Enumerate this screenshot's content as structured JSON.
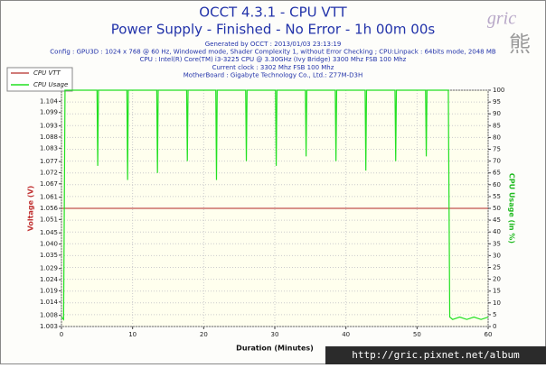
{
  "chart_data": {
    "type": "line",
    "title": "OCCT 4.3.1 - CPU VTT",
    "subtitle": "Power Supply - Finished - No Error - 1h 00m 00s",
    "info_lines": [
      "Generated by OCCT : 2013/01/03 23:13:19",
      "Config : GPU3D : 1024 x 768 @ 60 Hz, Windowed mode, Shader Complexity 1, without Error Checking ; CPU:Linpack : 64bits mode, 2048 MB",
      "CPU : Intel(R) Core(TM) i3-3225 CPU @ 3.30GHz (Ivy Bridge) 3300 Mhz FSB 100 Mhz",
      "Current clock : 3302 Mhz FSB 100 Mhz",
      "MotherBoard : Gigabyte Technology Co., Ltd.: Z77M-D3H"
    ],
    "watermark": "gric",
    "watermark_char": "熊",
    "url": "http://gric.pixnet.net/album",
    "xlabel": "Duration (Minutes)",
    "ylabel": "Voltage (V)",
    "y2label": "CPU Usage (in %)",
    "grid": true,
    "legend": "top-left",
    "x": [
      0,
      0.3,
      0.5,
      5.0,
      5.1,
      5.2,
      9.2,
      9.3,
      9.4,
      13.4,
      13.5,
      13.6,
      17.6,
      17.7,
      17.8,
      21.7,
      21.8,
      21.9,
      25.9,
      26.0,
      26.1,
      30.1,
      30.2,
      30.3,
      34.3,
      34.4,
      34.5,
      38.5,
      38.6,
      38.7,
      42.7,
      42.8,
      42.9,
      46.9,
      47.0,
      47.1,
      51.2,
      51.3,
      51.4,
      54.4,
      54.6,
      55,
      56,
      57,
      58,
      59,
      60
    ],
    "xlim": [
      0,
      60
    ],
    "xticks": [
      0,
      10,
      20,
      30,
      40,
      50,
      60
    ],
    "ylim": [
      1.003,
      1.109
    ],
    "yticks": [
      1.104,
      1.099,
      1.093,
      1.088,
      1.083,
      1.077,
      1.072,
      1.067,
      1.061,
      1.056,
      1.051,
      1.045,
      {
        "value": 1.04,
        "label": "1.040"
      },
      1.035,
      1.029,
      1.024,
      1.019,
      1.014,
      1.008,
      1.003
    ],
    "y2lim": [
      0,
      100
    ],
    "y2ticks": [
      0,
      5,
      10,
      15,
      20,
      25,
      30,
      35,
      40,
      45,
      50,
      55,
      60,
      65,
      70,
      75,
      80,
      85,
      90,
      95,
      100
    ],
    "series": [
      {
        "name": "CPU VTT",
        "color": "#c0504d",
        "values": [
          1.056,
          1.056,
          1.056,
          1.056,
          1.056,
          1.056,
          1.056,
          1.056,
          1.056,
          1.056,
          1.056,
          1.056,
          1.056,
          1.056,
          1.056,
          1.056,
          1.056,
          1.056,
          1.056,
          1.056,
          1.056,
          1.056,
          1.056,
          1.056,
          1.056,
          1.056,
          1.056,
          1.056,
          1.056,
          1.056,
          1.056,
          1.056,
          1.056,
          1.056,
          1.056,
          1.056,
          1.056,
          1.056,
          1.056,
          1.056,
          1.056,
          1.056,
          1.056,
          1.056,
          1.056,
          1.056,
          1.056
        ]
      },
      {
        "name": "CPU Usage",
        "color": "#22e022",
        "axis": "y2",
        "values": [
          4,
          3,
          100,
          100,
          68,
          100,
          100,
          62,
          100,
          100,
          65,
          100,
          100,
          70,
          100,
          100,
          62,
          100,
          100,
          70,
          100,
          100,
          68,
          100,
          100,
          72,
          100,
          100,
          70,
          100,
          100,
          66,
          100,
          100,
          70,
          100,
          100,
          72,
          100,
          100,
          4,
          3,
          4,
          3,
          4,
          3,
          4
        ]
      }
    ]
  }
}
